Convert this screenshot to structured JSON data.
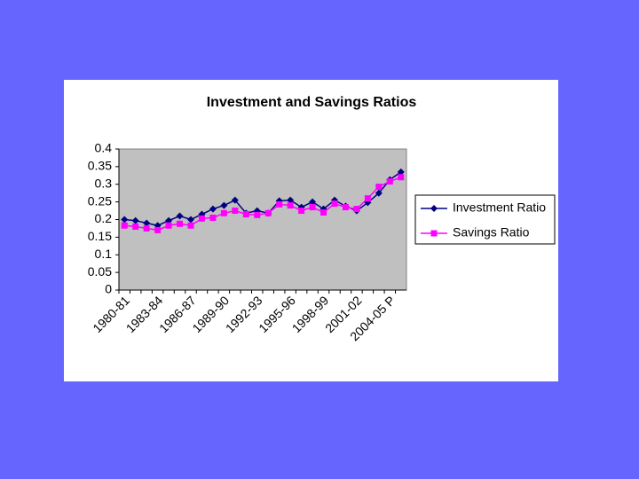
{
  "chart_data": {
    "type": "line",
    "title": "Investment and Savings Ratios",
    "categories": [
      "1980-81",
      null,
      null,
      "1983-84",
      null,
      null,
      "1986-87",
      null,
      null,
      "1989-90",
      null,
      null,
      "1992-93",
      null,
      null,
      "1995-96",
      null,
      null,
      "1998-99",
      null,
      null,
      "2001-02",
      null,
      null,
      "2004-05 P",
      null
    ],
    "series": [
      {
        "name": "Investment Ratio",
        "color": "#000080",
        "marker": "diamond",
        "values": [
          0.2,
          0.197,
          0.19,
          0.183,
          0.197,
          0.21,
          0.2,
          0.215,
          0.23,
          0.24,
          0.255,
          0.218,
          0.225,
          0.218,
          0.253,
          0.255,
          0.235,
          0.25,
          0.23,
          0.255,
          0.238,
          0.225,
          0.248,
          0.275,
          0.313,
          0.335
        ]
      },
      {
        "name": "Savings Ratio",
        "color": "#ff00ff",
        "marker": "square",
        "values": [
          0.183,
          0.18,
          0.175,
          0.17,
          0.183,
          0.188,
          0.183,
          0.203,
          0.205,
          0.218,
          0.225,
          0.215,
          0.213,
          0.218,
          0.243,
          0.24,
          0.225,
          0.235,
          0.22,
          0.245,
          0.235,
          0.23,
          0.26,
          0.293,
          0.308,
          0.32
        ]
      }
    ],
    "ylim": [
      0,
      0.4
    ],
    "yticks": [
      0,
      0.05,
      0.1,
      0.15,
      0.2,
      0.25,
      0.3,
      0.35,
      0.4
    ],
    "legend": "right",
    "plot_background": "#c0c0c0"
  }
}
